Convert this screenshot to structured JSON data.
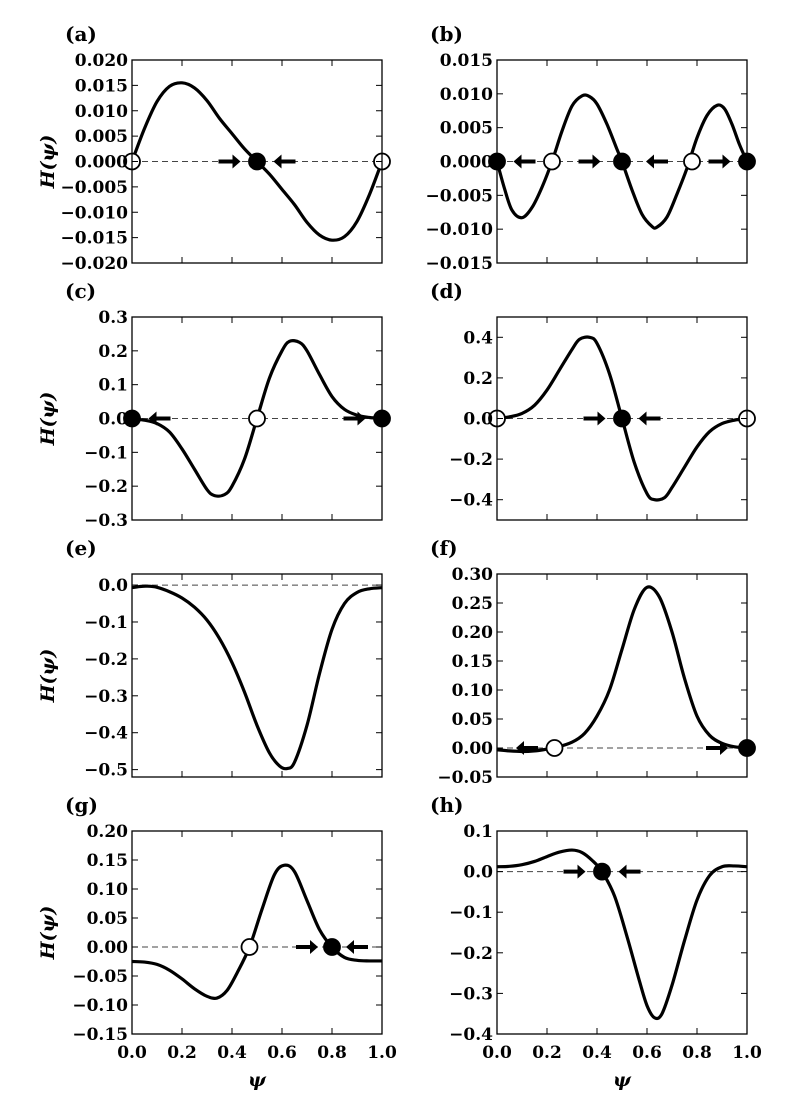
{
  "chart_data": [
    {
      "id": "a",
      "type": "line",
      "panel_label": "(a)",
      "ylabel": "H(ψ)",
      "xlabel": "",
      "xlim": [
        0,
        1
      ],
      "ylim": [
        -0.02,
        0.02
      ],
      "yticks": [
        0.02,
        0.015,
        0.01,
        0.005,
        0.0,
        -0.005,
        -0.01,
        -0.015,
        -0.02
      ],
      "ytick_labels": [
        "0.020",
        "0.015",
        "0.010",
        "0.005",
        "0.000",
        "−0.005",
        "−0.010",
        "−0.015",
        "−0.020"
      ],
      "xticks": [
        0,
        0.2,
        0.4,
        0.6,
        0.8,
        1.0
      ],
      "xtick_labels": [],
      "x": [
        0,
        0.05,
        0.1,
        0.15,
        0.2,
        0.25,
        0.3,
        0.35,
        0.4,
        0.45,
        0.5,
        0.55,
        0.6,
        0.65,
        0.7,
        0.75,
        0.8,
        0.85,
        0.9,
        0.95,
        1.0
      ],
      "y": [
        0,
        0.0065,
        0.0118,
        0.0148,
        0.0155,
        0.0145,
        0.012,
        0.0085,
        0.0055,
        0.0025,
        0,
        -0.0025,
        -0.0055,
        -0.0085,
        -0.012,
        -0.0145,
        -0.0155,
        -0.0148,
        -0.0118,
        -0.0065,
        0
      ],
      "fixed_points": [
        {
          "x": 0,
          "stable": false
        },
        {
          "x": 0.5,
          "stable": true
        },
        {
          "x": 1.0,
          "stable": false
        }
      ],
      "arrows": [
        {
          "x": 0.39,
          "dir": "right"
        },
        {
          "x": 0.61,
          "dir": "left"
        }
      ]
    },
    {
      "id": "b",
      "type": "line",
      "panel_label": "(b)",
      "ylabel": "",
      "xlabel": "",
      "xlim": [
        0,
        1
      ],
      "ylim": [
        -0.015,
        0.015
      ],
      "yticks": [
        0.015,
        0.01,
        0.005,
        0.0,
        -0.005,
        -0.01,
        -0.015
      ],
      "ytick_labels": [
        "0.015",
        "0.010",
        "0.005",
        "0.000",
        "−0.005",
        "−0.010",
        "−0.015"
      ],
      "xticks": [
        0,
        0.2,
        0.4,
        0.6,
        0.8,
        1.0
      ],
      "xtick_labels": [],
      "x": [
        0,
        0.03,
        0.06,
        0.1,
        0.14,
        0.18,
        0.22,
        0.26,
        0.3,
        0.34,
        0.37,
        0.4,
        0.44,
        0.48,
        0.5,
        0.54,
        0.58,
        0.62,
        0.64,
        0.68,
        0.72,
        0.76,
        0.8,
        0.84,
        0.88,
        0.91,
        0.94,
        0.97,
        1.0
      ],
      "y": [
        0,
        -0.004,
        -0.0072,
        -0.0083,
        -0.0068,
        -0.0038,
        0,
        0.0045,
        0.0082,
        0.0097,
        0.0096,
        0.0085,
        0.0055,
        0.0018,
        0,
        -0.0042,
        -0.0078,
        -0.0096,
        -0.0097,
        -0.0082,
        -0.0048,
        -0.001,
        0.0035,
        0.0068,
        0.0083,
        0.0078,
        0.0055,
        0.0025,
        0
      ],
      "fixed_points": [
        {
          "x": 0,
          "stable": true
        },
        {
          "x": 0.22,
          "stable": false
        },
        {
          "x": 0.5,
          "stable": true
        },
        {
          "x": 0.78,
          "stable": false
        },
        {
          "x": 1.0,
          "stable": true
        }
      ],
      "arrows": [
        {
          "x": 0.11,
          "dir": "left"
        },
        {
          "x": 0.37,
          "dir": "right"
        },
        {
          "x": 0.64,
          "dir": "left"
        },
        {
          "x": 0.89,
          "dir": "right"
        }
      ]
    },
    {
      "id": "c",
      "type": "line",
      "panel_label": "(c)",
      "ylabel": "H(ψ)",
      "xlabel": "",
      "xlim": [
        0,
        1
      ],
      "ylim": [
        -0.3,
        0.3
      ],
      "yticks": [
        0.3,
        0.2,
        0.1,
        0.0,
        -0.1,
        -0.2,
        -0.3
      ],
      "ytick_labels": [
        "0.3",
        "0.2",
        "0.1",
        "0.0",
        "−0.1",
        "−0.2",
        "−0.3"
      ],
      "xticks": [
        0,
        0.2,
        0.4,
        0.6,
        0.8,
        1.0
      ],
      "xtick_labels": [],
      "x": [
        0,
        0.05,
        0.1,
        0.15,
        0.2,
        0.25,
        0.3,
        0.33,
        0.37,
        0.4,
        0.45,
        0.5,
        0.55,
        0.6,
        0.63,
        0.67,
        0.7,
        0.75,
        0.8,
        0.85,
        0.9,
        0.95,
        1.0
      ],
      "y": [
        0,
        -0.005,
        -0.015,
        -0.04,
        -0.09,
        -0.15,
        -0.21,
        -0.228,
        -0.225,
        -0.2,
        -0.12,
        0,
        0.12,
        0.2,
        0.228,
        0.225,
        0.2,
        0.13,
        0.065,
        0.027,
        0.01,
        0.003,
        0
      ],
      "fixed_points": [
        {
          "x": 0,
          "stable": true
        },
        {
          "x": 0.5,
          "stable": false
        },
        {
          "x": 1.0,
          "stable": true
        }
      ],
      "arrows": [
        {
          "x": 0.11,
          "dir": "left"
        },
        {
          "x": 0.89,
          "dir": "right"
        }
      ]
    },
    {
      "id": "d",
      "type": "line",
      "panel_label": "(d)",
      "ylabel": "",
      "xlabel": "",
      "xlim": [
        0,
        1
      ],
      "ylim": [
        -0.5,
        0.5
      ],
      "yticks": [
        0.4,
        0.2,
        0.0,
        -0.2,
        -0.4
      ],
      "ytick_labels": [
        "0.4",
        "0.2",
        "0.0",
        "−0.2",
        "−0.4"
      ],
      "xticks": [
        0,
        0.2,
        0.4,
        0.6,
        0.8,
        1.0
      ],
      "xtick_labels": [],
      "x": [
        0,
        0.05,
        0.1,
        0.15,
        0.2,
        0.25,
        0.3,
        0.33,
        0.37,
        0.4,
        0.45,
        0.5,
        0.55,
        0.6,
        0.63,
        0.67,
        0.7,
        0.75,
        0.8,
        0.85,
        0.9,
        0.95,
        1.0
      ],
      "y": [
        0,
        0.008,
        0.025,
        0.065,
        0.14,
        0.24,
        0.34,
        0.39,
        0.4,
        0.37,
        0.22,
        0,
        -0.22,
        -0.37,
        -0.4,
        -0.39,
        -0.34,
        -0.24,
        -0.14,
        -0.065,
        -0.025,
        -0.008,
        0
      ],
      "fixed_points": [
        {
          "x": 0,
          "stable": false
        },
        {
          "x": 0.5,
          "stable": true
        },
        {
          "x": 1.0,
          "stable": false
        }
      ],
      "arrows": [
        {
          "x": 0.39,
          "dir": "right"
        },
        {
          "x": 0.61,
          "dir": "left"
        }
      ]
    },
    {
      "id": "e",
      "type": "line",
      "panel_label": "(e)",
      "ylabel": "H(ψ)",
      "xlabel": "",
      "xlim": [
        0,
        1
      ],
      "ylim": [
        -0.52,
        0.03
      ],
      "yticks": [
        0.0,
        -0.1,
        -0.2,
        -0.3,
        -0.4,
        -0.5
      ],
      "ytick_labels": [
        "0.0",
        "−0.1",
        "−0.2",
        "−0.3",
        "−0.4",
        "−0.5"
      ],
      "xticks": [
        0,
        0.2,
        0.4,
        0.6,
        0.8,
        1.0
      ],
      "xtick_labels": [],
      "x": [
        0,
        0.03,
        0.06,
        0.1,
        0.15,
        0.2,
        0.25,
        0.3,
        0.35,
        0.4,
        0.45,
        0.5,
        0.55,
        0.59,
        0.62,
        0.65,
        0.7,
        0.75,
        0.8,
        0.85,
        0.9,
        0.95,
        1.0
      ],
      "y": [
        -0.007,
        -0.004,
        -0.003,
        -0.006,
        -0.018,
        -0.035,
        -0.06,
        -0.095,
        -0.145,
        -0.21,
        -0.29,
        -0.38,
        -0.455,
        -0.49,
        -0.497,
        -0.48,
        -0.38,
        -0.24,
        -0.12,
        -0.05,
        -0.02,
        -0.01,
        -0.007
      ],
      "fixed_points": [],
      "arrows": []
    },
    {
      "id": "f",
      "type": "line",
      "panel_label": "(f)",
      "ylabel": "",
      "xlabel": "",
      "xlim": [
        0,
        1
      ],
      "ylim": [
        -0.05,
        0.3
      ],
      "yticks": [
        0.3,
        0.25,
        0.2,
        0.15,
        0.1,
        0.05,
        0.0,
        -0.05
      ],
      "ytick_labels": [
        "0.30",
        "0.25",
        "0.20",
        "0.15",
        "0.10",
        "0.05",
        "0.00",
        "−0.05"
      ],
      "xticks": [
        0,
        0.2,
        0.4,
        0.6,
        0.8,
        1.0
      ],
      "xtick_labels": [],
      "x": [
        0,
        0.05,
        0.1,
        0.15,
        0.2,
        0.23,
        0.3,
        0.35,
        0.4,
        0.45,
        0.5,
        0.55,
        0.6,
        0.65,
        0.7,
        0.75,
        0.8,
        0.85,
        0.9,
        0.95,
        1.0
      ],
      "y": [
        -0.003,
        -0.005,
        -0.006,
        -0.005,
        -0.002,
        0,
        0.01,
        0.025,
        0.055,
        0.1,
        0.17,
        0.24,
        0.277,
        0.26,
        0.2,
        0.12,
        0.055,
        0.022,
        0.008,
        0.002,
        0
      ],
      "fixed_points": [
        {
          "x": 0.23,
          "stable": false
        },
        {
          "x": 1.0,
          "stable": true
        }
      ],
      "arrows": [
        {
          "x": 0.12,
          "dir": "left"
        },
        {
          "x": 0.88,
          "dir": "right"
        }
      ]
    },
    {
      "id": "g",
      "type": "line",
      "panel_label": "(g)",
      "ylabel": "H(ψ)",
      "xlabel": "ψ",
      "xlim": [
        0,
        1
      ],
      "ylim": [
        -0.15,
        0.2
      ],
      "yticks": [
        0.2,
        0.15,
        0.1,
        0.05,
        0.0,
        -0.05,
        -0.1,
        -0.15
      ],
      "ytick_labels": [
        "0.20",
        "0.15",
        "0.10",
        "0.05",
        "0.00",
        "−0.05",
        "−0.10",
        "−0.15"
      ],
      "xticks": [
        0,
        0.2,
        0.4,
        0.6,
        0.8,
        1.0
      ],
      "xtick_labels": [
        "0.0",
        "0.2",
        "0.4",
        "0.6",
        "0.8",
        "1.0"
      ],
      "x": [
        0,
        0.05,
        0.1,
        0.15,
        0.2,
        0.25,
        0.3,
        0.34,
        0.38,
        0.42,
        0.47,
        0.52,
        0.57,
        0.61,
        0.65,
        0.7,
        0.75,
        0.8,
        0.85,
        0.9,
        0.95,
        1.0
      ],
      "y": [
        -0.025,
        -0.026,
        -0.03,
        -0.04,
        -0.055,
        -0.072,
        -0.085,
        -0.088,
        -0.075,
        -0.045,
        0,
        0.065,
        0.125,
        0.141,
        0.13,
        0.08,
        0.03,
        0,
        -0.018,
        -0.023,
        -0.024,
        -0.024
      ],
      "fixed_points": [
        {
          "x": 0.47,
          "stable": false
        },
        {
          "x": 0.8,
          "stable": true
        }
      ],
      "arrows": [
        {
          "x": 0.7,
          "dir": "right"
        },
        {
          "x": 0.9,
          "dir": "left"
        }
      ]
    },
    {
      "id": "h",
      "type": "line",
      "panel_label": "(h)",
      "ylabel": "",
      "xlabel": "ψ",
      "xlim": [
        0,
        1
      ],
      "ylim": [
        -0.4,
        0.1
      ],
      "yticks": [
        0.1,
        0.0,
        -0.1,
        -0.2,
        -0.3,
        -0.4
      ],
      "ytick_labels": [
        "0.1",
        "0.0",
        "−0.1",
        "−0.2",
        "−0.3",
        "−0.4"
      ],
      "xticks": [
        0,
        0.2,
        0.4,
        0.6,
        0.8,
        1.0
      ],
      "xtick_labels": [
        "0.0",
        "0.2",
        "0.4",
        "0.6",
        "0.8",
        "1.0"
      ],
      "x": [
        0,
        0.05,
        0.1,
        0.15,
        0.2,
        0.25,
        0.3,
        0.34,
        0.38,
        0.42,
        0.47,
        0.52,
        0.57,
        0.6,
        0.63,
        0.66,
        0.7,
        0.75,
        0.8,
        0.85,
        0.9,
        0.95,
        1.0
      ],
      "y": [
        0.012,
        0.013,
        0.017,
        0.025,
        0.037,
        0.048,
        0.053,
        0.047,
        0.028,
        0,
        -0.06,
        -0.16,
        -0.27,
        -0.33,
        -0.36,
        -0.35,
        -0.28,
        -0.17,
        -0.07,
        -0.01,
        0.012,
        0.014,
        0.012
      ],
      "fixed_points": [
        {
          "x": 0.42,
          "stable": true
        }
      ],
      "arrows": [
        {
          "x": 0.31,
          "dir": "right"
        },
        {
          "x": 0.53,
          "dir": "left"
        }
      ]
    }
  ]
}
